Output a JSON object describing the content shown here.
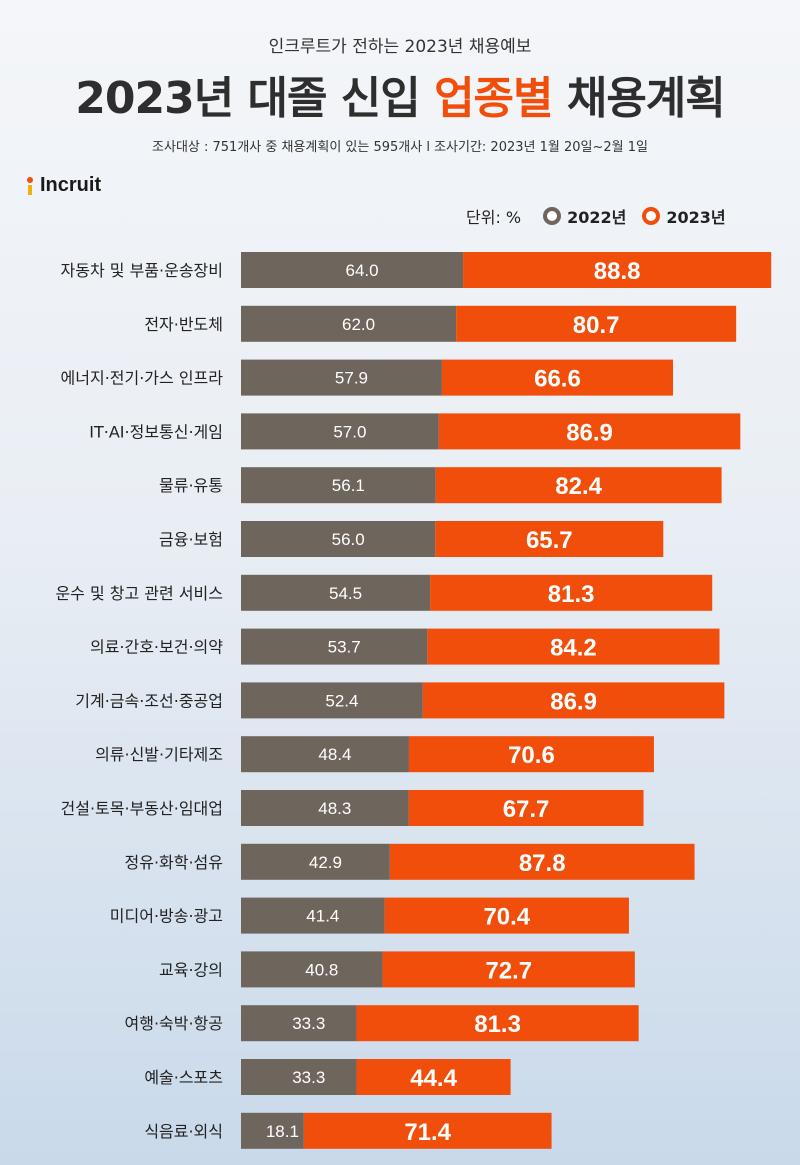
{
  "header": {
    "subtitle": "인크루트가 전하는 2023년 채용예보",
    "title_part1": "2023년 대졸 신입 ",
    "title_highlight": "업종별",
    "title_part2": " 채용계획",
    "survey_info": "조사대상 : 751개사 중 채용계획이 있는 595개사 l 조사기간: 2023년 1월 20일~2월 1일"
  },
  "logo": {
    "text": "Incruit"
  },
  "legend": {
    "unit": "단위: %",
    "items": [
      {
        "label": "2022년",
        "color": "#6e655d"
      },
      {
        "label": "2023년",
        "color": "#f04e0a"
      }
    ]
  },
  "chart_data": {
    "type": "bar",
    "orientation": "horizontal",
    "stacked": true,
    "unit": "%",
    "categories": [
      "자동차 및 부품·운송장비",
      "전자·반도체",
      "에너지·전기·가스 인프라",
      "IT·AI·정보통신·게임",
      "물류·유통",
      "금융·보험",
      "운수 및 창고 관련 서비스",
      "의료·간호·보건·의약",
      "기계·금속·조선·중공업",
      "의류·신발·기타제조",
      "건설·토목·부동산·임대업",
      "정유·화학·섬유",
      "미디어·방송·광고",
      "교육·강의",
      "여행·숙박·항공",
      "예술·스포츠",
      "식음료·외식"
    ],
    "series": [
      {
        "name": "2022년",
        "color": "#6e655d",
        "values": [
          64.0,
          62.0,
          57.9,
          57.0,
          56.1,
          56.0,
          54.5,
          53.7,
          52.4,
          48.4,
          48.3,
          42.9,
          41.4,
          40.8,
          33.3,
          33.3,
          18.1
        ]
      },
      {
        "name": "2023년",
        "color": "#f04e0a",
        "values": [
          88.8,
          80.7,
          66.6,
          86.9,
          82.4,
          65.7,
          81.3,
          84.2,
          86.9,
          70.6,
          67.7,
          87.8,
          70.4,
          72.7,
          81.3,
          44.4,
          71.4
        ]
      }
    ],
    "legend_position": "top-right",
    "grid": false
  }
}
